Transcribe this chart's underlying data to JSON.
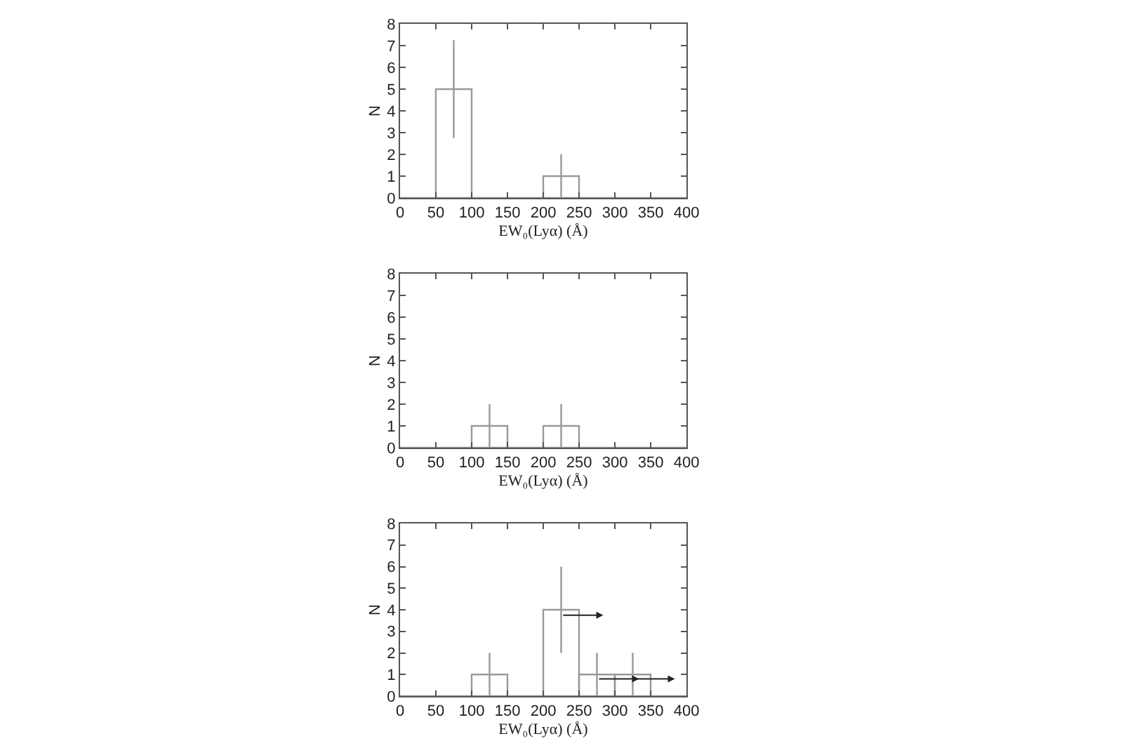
{
  "chart_data": [
    {
      "type": "histogram",
      "xlabel": "EW₀(Lyα) (Å)",
      "ylabel": "N",
      "bins": [
        0,
        50,
        100,
        150,
        200,
        250,
        300,
        350,
        400
      ],
      "values": [
        0,
        5,
        0,
        0,
        1,
        0,
        0,
        0
      ],
      "errors": [
        null,
        [
          2.75,
          7.25
        ],
        null,
        null,
        [
          0,
          2
        ],
        null,
        null,
        null
      ],
      "color": "#999999",
      "xlim": [
        0,
        400
      ],
      "ylim": [
        0,
        8
      ],
      "xticks": [
        0,
        50,
        100,
        150,
        200,
        250,
        300,
        350,
        400
      ],
      "yticks": [
        0,
        1,
        2,
        3,
        4,
        5,
        6,
        7,
        8
      ],
      "grid": false,
      "legend": false
    },
    {
      "type": "histogram",
      "xlabel": "EW₀(Lyα) (Å)",
      "ylabel": "N",
      "bins": [
        0,
        50,
        100,
        150,
        200,
        250,
        300,
        350,
        400
      ],
      "values": [
        0,
        0,
        1,
        0,
        1,
        0,
        0,
        0
      ],
      "errors": [
        null,
        null,
        [
          0,
          2
        ],
        null,
        [
          0,
          2
        ],
        null,
        null,
        null
      ],
      "color": "#999999",
      "xlim": [
        0,
        400
      ],
      "ylim": [
        0,
        8
      ],
      "xticks": [
        0,
        50,
        100,
        150,
        200,
        250,
        300,
        350,
        400
      ],
      "yticks": [
        0,
        1,
        2,
        3,
        4,
        5,
        6,
        7,
        8
      ],
      "grid": false,
      "legend": false
    },
    {
      "type": "histogram",
      "xlabel": "EW₀(Lyα) (Å)",
      "ylabel": "N",
      "bins": [
        0,
        50,
        100,
        150,
        200,
        250,
        300,
        350,
        400
      ],
      "values": [
        0,
        0,
        1,
        0,
        4,
        1,
        1,
        0
      ],
      "errors": [
        null,
        null,
        [
          0,
          2
        ],
        null,
        [
          2,
          6
        ],
        [
          0,
          2
        ],
        [
          0,
          2
        ],
        null
      ],
      "color": "#999999",
      "xlim": [
        0,
        400
      ],
      "ylim": [
        0,
        8
      ],
      "xticks": [
        0,
        50,
        100,
        150,
        200,
        250,
        300,
        350,
        400
      ],
      "yticks": [
        0,
        1,
        2,
        3,
        4,
        5,
        6,
        7,
        8
      ],
      "grid": false,
      "legend": false
    }
  ]
}
